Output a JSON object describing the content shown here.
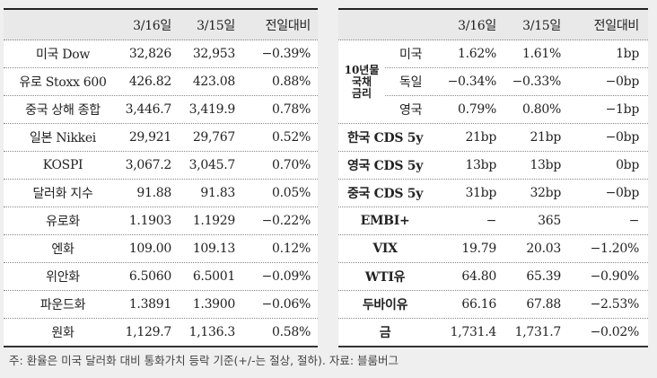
{
  "left_table": {
    "headers": [
      "",
      "3/16일",
      "3/15일",
      "전일대비"
    ],
    "rows": [
      {
        "label": "미국 Dow",
        "d1": "32,826",
        "d2": "32,953",
        "chg": "−0.39%"
      },
      {
        "label": "유로 Stoxx 600",
        "d1": "426.82",
        "d2": "423.08",
        "chg": "0.88%"
      },
      {
        "label": "중국 상해 종합",
        "d1": "3,446.7",
        "d2": "3,419.9",
        "chg": "0.78%"
      },
      {
        "label": "일본 Nikkei",
        "d1": "29,921",
        "d2": "29,767",
        "chg": "0.52%"
      },
      {
        "label": "KOSPI",
        "d1": "3,067.2",
        "d2": "3,045.7",
        "chg": "0.70%"
      },
      {
        "label": "달러화 지수",
        "d1": "91.88",
        "d2": "91.83",
        "chg": "0.05%"
      },
      {
        "label": "유로화",
        "d1": "1.1903",
        "d2": "1.1929",
        "chg": "−0.22%"
      },
      {
        "label": "엔화",
        "d1": "109.00",
        "d2": "109.13",
        "chg": "0.12%"
      },
      {
        "label": "위안화",
        "d1": "6.5060",
        "d2": "6.5001",
        "chg": "−0.09%"
      },
      {
        "label": "파운드화",
        "d1": "1.3891",
        "d2": "1.3900",
        "chg": "−0.06%"
      },
      {
        "label": "원화",
        "d1": "1,129.7",
        "d2": "1,136.3",
        "chg": "0.58%"
      }
    ]
  },
  "right_table": {
    "headers": [
      "",
      "3/16일",
      "3/15일",
      "전일대비"
    ],
    "bond_group": {
      "label_lines": [
        "10년물",
        "국채",
        "금리"
      ],
      "rows": [
        {
          "label": "미국",
          "d1": "1.62%",
          "d2": "1.61%",
          "chg": "1bp"
        },
        {
          "label": "독일",
          "d1": "−0.34%",
          "d2": "−0.33%",
          "chg": "−0bp"
        },
        {
          "label": "영국",
          "d1": "0.79%",
          "d2": "0.80%",
          "chg": "−1bp"
        }
      ]
    },
    "rows": [
      {
        "label": "한국 CDS 5y",
        "d1": "21bp",
        "d2": "21bp",
        "chg": "−0bp"
      },
      {
        "label": "영국 CDS 5y",
        "d1": "13bp",
        "d2": "13bp",
        "chg": "0bp"
      },
      {
        "label": "중국 CDS 5y",
        "d1": "31bp",
        "d2": "32bp",
        "chg": "−0bp"
      },
      {
        "label": "EMBI+",
        "d1": "−",
        "d2": "365",
        "chg": "−"
      },
      {
        "label": "VIX",
        "d1": "19.79",
        "d2": "20.03",
        "chg": "−1.20%"
      },
      {
        "label": "WTI유",
        "d1": "64.80",
        "d2": "65.39",
        "chg": "−0.90%"
      },
      {
        "label": "두바이유",
        "d1": "66.16",
        "d2": "67.88",
        "chg": "−2.53%"
      },
      {
        "label": "금",
        "d1": "1,731.4",
        "d2": "1,731.7",
        "chg": "−0.02%"
      }
    ]
  },
  "note": "주: 환율은 미국 달러화 대비 통화가치 등락 기준(+/-는 절상, 절하). 자료: 블룸버그"
}
